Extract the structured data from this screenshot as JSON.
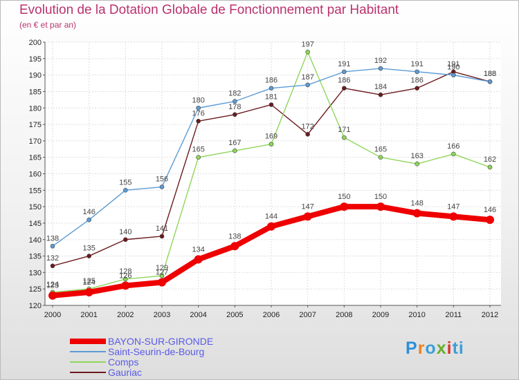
{
  "title": "Evolution de la Dotation Globale de Fonctionnement par Habitant",
  "subtitle": "(en € et par an)",
  "logo": {
    "text": "Proxiti",
    "letters": [
      "P",
      "r",
      "o",
      "x",
      "i",
      "ti"
    ]
  },
  "chart_data": {
    "type": "line",
    "title": "Evolution de la Dotation Globale de Fonctionnement par Habitant",
    "subtitle": "(en € et par an)",
    "xlabel": "",
    "ylabel": "",
    "categories": [
      "2000",
      "2001",
      "2002",
      "2003",
      "2004",
      "2005",
      "2006",
      "2007",
      "2008",
      "2009",
      "2010",
      "2011",
      "2012"
    ],
    "ylim": [
      120,
      200
    ],
    "yticks": [
      "120",
      "125",
      "130",
      "135",
      "140",
      "145",
      "150",
      "155",
      "160",
      "165",
      "170",
      "175",
      "180",
      "185",
      "190",
      "195",
      "200"
    ],
    "grid": true,
    "series": [
      {
        "name": "Gauriac",
        "color": "#6b1a1e",
        "values": [
          132,
          135,
          140,
          141,
          176,
          178,
          181,
          172,
          186,
          184,
          186,
          191,
          188
        ]
      },
      {
        "name": "Comps",
        "color": "#8ed65a",
        "values": [
          124,
          125,
          128,
          129,
          165,
          167,
          169,
          197,
          171,
          165,
          163,
          166,
          162
        ]
      },
      {
        "name": "Saint-Seurin-de-Bourg",
        "color": "#5b9bd5",
        "values": [
          138,
          146,
          155,
          156,
          180,
          182,
          186,
          187,
          191,
          192,
          191,
          190,
          188
        ]
      },
      {
        "name": "BAYON-SUR-GIRONDE",
        "color": "#ee0000",
        "values": [
          123,
          124,
          126,
          127,
          134,
          138,
          144,
          147,
          150,
          150,
          148,
          147,
          146
        ]
      }
    ],
    "legend": [
      "BAYON-SUR-GIRONDE",
      "Saint-Seurin-de-Bourg",
      "Comps",
      "Gauriac"
    ],
    "legend_position": "bottom-left"
  }
}
